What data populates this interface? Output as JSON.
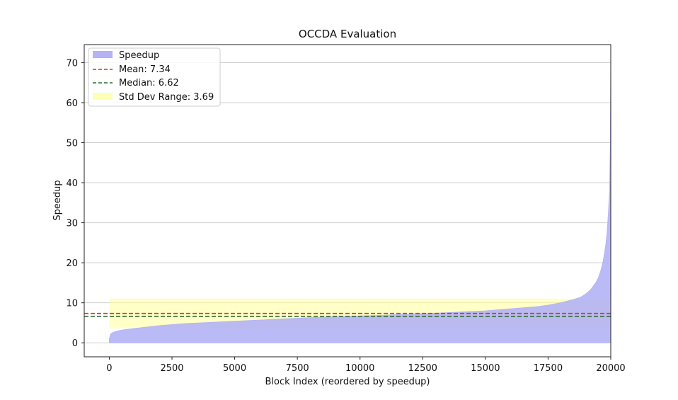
{
  "chart_data": {
    "type": "area",
    "title": "OCCDA Evaluation",
    "xlabel": "Block Index (reordered by speedup)",
    "ylabel": "Speedup",
    "xlim": [
      -1000,
      20000
    ],
    "ylim": [
      -3.5,
      74.5
    ],
    "x_ticks": [
      "0",
      "2500",
      "5000",
      "7500",
      "10000",
      "12500",
      "15000",
      "17500",
      "20000"
    ],
    "x_tick_values": [
      0,
      2500,
      5000,
      7500,
      10000,
      12500,
      15000,
      17500,
      20000
    ],
    "y_ticks": [
      "0",
      "10",
      "20",
      "30",
      "40",
      "50",
      "60",
      "70"
    ],
    "y_tick_values": [
      0,
      10,
      20,
      30,
      40,
      50,
      60,
      70
    ],
    "grid": "horizontal",
    "legend_position": "top-left",
    "series": [
      {
        "name": "Speedup",
        "color": "#b3b3f5",
        "x": [
          0,
          50,
          150,
          300,
          500,
          1000,
          2000,
          3000,
          4000,
          5000,
          6000,
          7000,
          8000,
          9000,
          10000,
          11000,
          12000,
          13000,
          14000,
          15000,
          16000,
          17000,
          17500,
          18000,
          18500,
          18800,
          19000,
          19200,
          19400,
          19500,
          19600,
          19700,
          19800,
          19850,
          19900,
          19950,
          19980,
          20000
        ],
        "y": [
          1.0,
          2.2,
          2.6,
          2.9,
          3.2,
          3.6,
          4.3,
          4.8,
          5.1,
          5.4,
          5.7,
          6.0,
          6.3,
          6.5,
          6.7,
          6.9,
          7.2,
          7.4,
          7.7,
          8.0,
          8.5,
          9.0,
          9.4,
          10.0,
          10.8,
          11.4,
          12.2,
          13.3,
          15.0,
          16.2,
          18.0,
          20.5,
          24.5,
          27.5,
          32.0,
          38.0,
          50.0,
          71.0
        ]
      }
    ],
    "reference_lines": [
      {
        "name": "Mean: 7.34",
        "value": 7.34,
        "color": "#c0392b",
        "style": "dashed"
      },
      {
        "name": "Median: 6.62",
        "value": 6.62,
        "color": "#2e6b2e",
        "style": "dashed"
      }
    ],
    "bands": [
      {
        "name": "Std Dev Range: 3.69",
        "from": 3.65,
        "to": 11.03,
        "x_from": 0,
        "x_to": 20000,
        "color": "#ffff99"
      }
    ],
    "legend": [
      "Speedup",
      "Mean: 7.34",
      "Median: 6.62",
      "Std Dev Range: 3.69"
    ]
  }
}
